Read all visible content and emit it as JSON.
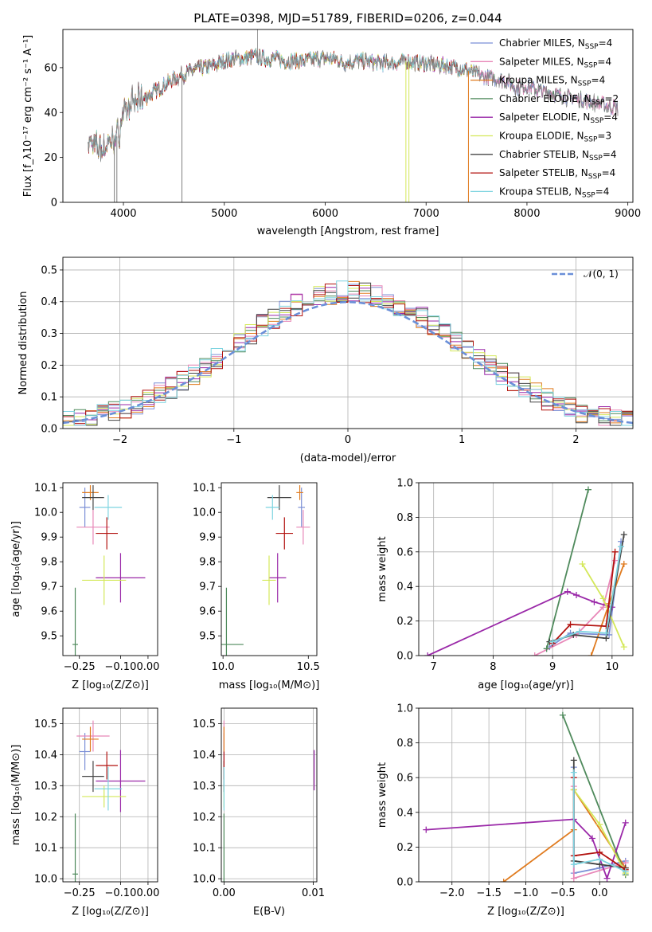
{
  "chart_data": [
    {
      "id": "spectrum",
      "type": "line",
      "title": "PLATE=0398, MJD=51789, FIBERID=0206, z=0.044",
      "xlabel": "wavelength [Angstrom, rest frame]",
      "ylabel": "Flux [f_λ10⁻¹⁷ erg cm⁻² s⁻¹ A⁻¹]",
      "xlim": [
        3400,
        9050
      ],
      "ylim": [
        0,
        77
      ],
      "xticks": [
        "4000",
        "5000",
        "6000",
        "7000",
        "8000",
        "9000"
      ],
      "yticks": [
        "0",
        "20",
        "40",
        "60"
      ],
      "grid": false,
      "legend_position": "top-right",
      "legend": [
        {
          "label": "Chabrier MILES, N",
          "sub": "SSP",
          "tail": "=4",
          "color": "#7b8fd6"
        },
        {
          "label": "Salpeter MILES, N",
          "sub": "SSP",
          "tail": "=4",
          "color": "#e887b8"
        },
        {
          "label": "Kroupa MILES, N",
          "sub": "SSP",
          "tail": "=4",
          "color": "#e07b1f"
        },
        {
          "label": "Chabrier ELODIE, N",
          "sub": "SSP",
          "tail": "=2",
          "color": "#4f8a5c"
        },
        {
          "label": "Salpeter ELODIE, N",
          "sub": "SSP",
          "tail": "=4",
          "color": "#9a28a8"
        },
        {
          "label": "Kroupa ELODIE, N",
          "sub": "SSP",
          "tail": "=3",
          "color": "#d4e85a"
        },
        {
          "label": "Chabrier STELIB, N",
          "sub": "SSP",
          "tail": "=4",
          "color": "#444444"
        },
        {
          "label": "Salpeter STELIB, N",
          "sub": "SSP",
          "tail": "=4",
          "color": "#b2120f"
        },
        {
          "label": "Kroupa STELIB, N",
          "sub": "SSP",
          "tail": "=4",
          "color": "#7ed4e0"
        }
      ],
      "data_color": "#808080",
      "continuum_x": [
        3650,
        3720,
        3800,
        3880,
        3950,
        4000,
        4100,
        4200,
        4300,
        4400,
        4500,
        4600,
        4700,
        4800,
        4900,
        5000,
        5100,
        5200,
        5300,
        5400,
        5500,
        5600,
        5700,
        5800,
        5900,
        6000,
        6100,
        6200,
        6300,
        6400,
        6500,
        6600,
        6700,
        6800,
        6900,
        7000,
        7100,
        7200,
        7300,
        7400,
        7500,
        7600,
        7700,
        7800,
        7900,
        8000,
        8100,
        8200,
        8300,
        8400,
        8500,
        8600,
        8700,
        8800,
        8900
      ],
      "continuum_y": [
        27,
        25,
        24,
        27,
        30,
        40,
        44,
        46,
        49,
        52,
        55,
        57,
        59,
        60,
        61,
        63,
        64,
        64,
        65,
        64,
        64,
        63,
        63,
        63,
        64,
        64,
        64,
        62,
        63,
        63,
        62,
        62,
        62,
        63,
        62,
        62,
        61,
        61,
        60,
        59,
        57,
        56,
        55,
        54,
        51,
        52,
        50,
        49,
        48,
        47,
        46,
        45,
        44,
        43,
        42
      ],
      "dropouts_x": [
        3910,
        3935,
        4580,
        6800,
        6830,
        7420
      ]
    },
    {
      "id": "residuals",
      "type": "step",
      "xlabel": "(data-model)/error",
      "ylabel": "Normed distribution",
      "xlim": [
        -2.5,
        2.5
      ],
      "ylim": [
        0,
        0.54
      ],
      "xticks": [
        "−2",
        "−1",
        "0",
        "1",
        "2"
      ],
      "yticks": [
        "0.0",
        "0.1",
        "0.2",
        "0.3",
        "0.4",
        "0.5"
      ],
      "grid": true,
      "legend_position": "top-right",
      "legend": [
        {
          "label": "𝒩(0, 1)",
          "color": "#6a8fd8",
          "dashed": true
        }
      ],
      "bin_width": 0.1
    },
    {
      "id": "age-vs-Z",
      "type": "errorbar",
      "xlabel": "Z [log₁₀(Z/Z⊙)]",
      "ylabel": "age  [log₁₀(age/yr)]",
      "xlim": [
        -0.31,
        0.035
      ],
      "ylim": [
        9.42,
        10.12
      ],
      "xticks": [
        "−0.25",
        "−0.10",
        "0.00"
      ],
      "xtick_values": [
        -0.25,
        -0.1,
        0.0
      ],
      "yticks": [
        9.5,
        9.6,
        9.7,
        9.8,
        9.9,
        10.0,
        10.1
      ],
      "grid": false,
      "points": [
        {
          "x": -0.23,
          "y": 10.02,
          "xe": 0.02,
          "ye": 0.08,
          "color": "#7b8fd6"
        },
        {
          "x": -0.2,
          "y": 9.94,
          "xe": 0.06,
          "ye": 0.07,
          "color": "#e887b8"
        },
        {
          "x": -0.21,
          "y": 10.08,
          "xe": 0.03,
          "ye": 0.03,
          "color": "#e07b1f"
        },
        {
          "x": -0.265,
          "y": 9.465,
          "xe": 0.01,
          "ye": 0.23,
          "color": "#4f8a5c"
        },
        {
          "x": -0.1,
          "y": 9.735,
          "xe": 0.09,
          "ye": 0.1,
          "color": "#9a28a8"
        },
        {
          "x": -0.16,
          "y": 9.725,
          "xe": 0.08,
          "ye": 0.1,
          "color": "#d4e85a"
        },
        {
          "x": -0.2,
          "y": 10.06,
          "xe": 0.04,
          "ye": 0.05,
          "color": "#444444"
        },
        {
          "x": -0.15,
          "y": 9.915,
          "xe": 0.04,
          "ye": 0.065,
          "color": "#b2120f"
        },
        {
          "x": -0.145,
          "y": 10.02,
          "xe": 0.05,
          "ye": 0.05,
          "color": "#7ed4e0"
        }
      ]
    },
    {
      "id": "age-vs-mass",
      "type": "errorbar",
      "xlabel": "mass [log₁₀(M/M⊙)]",
      "ylabel": "",
      "xlim": [
        9.99,
        10.55
      ],
      "ylim": [
        9.42,
        10.12
      ],
      "xticks": [
        "10.0",
        "10.5"
      ],
      "xtick_values": [
        10.0,
        10.5
      ],
      "yticks": [
        9.5,
        9.6,
        9.7,
        9.8,
        9.9,
        10.0,
        10.1
      ],
      "grid": false,
      "points": [
        {
          "x": 10.46,
          "y": 10.02,
          "xe": 0.02,
          "ye": 0.08,
          "color": "#7b8fd6"
        },
        {
          "x": 10.47,
          "y": 9.94,
          "xe": 0.04,
          "ye": 0.07,
          "color": "#e887b8"
        },
        {
          "x": 10.45,
          "y": 10.08,
          "xe": 0.02,
          "ye": 0.03,
          "color": "#e07b1f"
        },
        {
          "x": 10.02,
          "y": 9.465,
          "xe": 0.1,
          "ye": 0.23,
          "color": "#4f8a5c"
        },
        {
          "x": 10.32,
          "y": 9.735,
          "xe": 0.05,
          "ye": 0.1,
          "color": "#9a28a8"
        },
        {
          "x": 10.27,
          "y": 9.725,
          "xe": 0.04,
          "ye": 0.1,
          "color": "#d4e85a"
        },
        {
          "x": 10.33,
          "y": 10.06,
          "xe": 0.07,
          "ye": 0.05,
          "color": "#444444"
        },
        {
          "x": 10.36,
          "y": 9.915,
          "xe": 0.05,
          "ye": 0.065,
          "color": "#b2120f"
        },
        {
          "x": 10.29,
          "y": 10.02,
          "xe": 0.04,
          "ye": 0.05,
          "color": "#7ed4e0"
        }
      ]
    },
    {
      "id": "weight-vs-age",
      "type": "line",
      "xlabel": "age  [log₁₀(age/yr)]",
      "ylabel": "mass weight",
      "xlim": [
        6.75,
        10.35
      ],
      "ylim": [
        0,
        1
      ],
      "xticks": [
        "7",
        "8",
        "9",
        "10"
      ],
      "xtick_values": [
        7,
        8,
        9,
        10
      ],
      "yticks": [
        "0.0",
        "0.2",
        "0.4",
        "0.6",
        "0.8",
        "1.0"
      ],
      "grid": true,
      "series": [
        {
          "color": "#7b8fd6",
          "x": [
            8.95,
            9.3,
            9.95,
            10.15
          ],
          "y": [
            0.05,
            0.13,
            0.12,
            0.66
          ]
        },
        {
          "color": "#e887b8",
          "x": [
            8.7,
            9.4,
            9.85,
            10.05
          ],
          "y": [
            0.0,
            0.12,
            0.28,
            0.55
          ]
        },
        {
          "color": "#e07b1f",
          "x": [
            9.65,
            9.95,
            10.2
          ],
          "y": [
            0.0,
            0.3,
            0.53
          ]
        },
        {
          "color": "#4f8a5c",
          "x": [
            8.9,
            9.6
          ],
          "y": [
            0.04,
            0.96
          ]
        },
        {
          "color": "#9a28a8",
          "x": [
            6.9,
            9.25,
            9.4,
            9.7,
            10.0
          ],
          "y": [
            0.0,
            0.37,
            0.35,
            0.31,
            0.28
          ]
        },
        {
          "color": "#d4e85a",
          "x": [
            9.5,
            9.85,
            10.2
          ],
          "y": [
            0.53,
            0.33,
            0.05
          ]
        },
        {
          "color": "#444444",
          "x": [
            8.95,
            9.35,
            9.9,
            10.2
          ],
          "y": [
            0.08,
            0.12,
            0.1,
            0.7
          ]
        },
        {
          "color": "#b2120f",
          "x": [
            9.0,
            9.3,
            9.9,
            10.05
          ],
          "y": [
            0.07,
            0.18,
            0.17,
            0.6
          ]
        },
        {
          "color": "#7ed4e0",
          "x": [
            9.0,
            9.45,
            9.9,
            10.15
          ],
          "y": [
            0.08,
            0.14,
            0.13,
            0.63
          ]
        }
      ]
    },
    {
      "id": "mass-vs-Z",
      "type": "errorbar",
      "xlabel": "Z [log₁₀(Z/Z⊙)]",
      "ylabel": "mass [log₁₀(M/M⊙)]",
      "xlim": [
        -0.31,
        0.035
      ],
      "ylim": [
        9.99,
        10.55
      ],
      "xticks": [
        "−0.25",
        "−0.10",
        "0.00"
      ],
      "xtick_values": [
        -0.25,
        -0.1,
        0.0
      ],
      "yticks": [
        10.0,
        10.1,
        10.2,
        10.3,
        10.4,
        10.5
      ],
      "grid": true,
      "points": [
        {
          "x": -0.23,
          "y": 10.41,
          "xe": 0.02,
          "ye": 0.06,
          "color": "#7b8fd6"
        },
        {
          "x": -0.2,
          "y": 10.46,
          "xe": 0.06,
          "ye": 0.05,
          "color": "#e887b8"
        },
        {
          "x": -0.21,
          "y": 10.45,
          "xe": 0.03,
          "ye": 0.04,
          "color": "#e07b1f"
        },
        {
          "x": -0.265,
          "y": 10.015,
          "xe": 0.01,
          "ye": 0.195,
          "color": "#4f8a5c"
        },
        {
          "x": -0.1,
          "y": 10.315,
          "xe": 0.09,
          "ye": 0.1,
          "color": "#9a28a8"
        },
        {
          "x": -0.16,
          "y": 10.265,
          "xe": 0.08,
          "ye": 0.035,
          "color": "#d4e85a"
        },
        {
          "x": -0.2,
          "y": 10.33,
          "xe": 0.04,
          "ye": 0.05,
          "color": "#444444"
        },
        {
          "x": -0.15,
          "y": 10.365,
          "xe": 0.04,
          "ye": 0.045,
          "color": "#b2120f"
        },
        {
          "x": -0.145,
          "y": 10.29,
          "xe": 0.05,
          "ye": 0.07,
          "color": "#7ed4e0"
        }
      ]
    },
    {
      "id": "mass-vs-ebv",
      "type": "errorbar",
      "xlabel": "E(B-V)",
      "ylabel": "",
      "xlim": [
        -0.0003,
        0.0104
      ],
      "ylim": [
        9.99,
        10.55
      ],
      "xticks": [
        "0.00",
        "0.01"
      ],
      "xtick_values": [
        0.0,
        0.01
      ],
      "yticks": [
        10.0,
        10.1,
        10.2,
        10.3,
        10.4,
        10.5
      ],
      "grid": true,
      "points": [
        {
          "x": 0.0,
          "y": 10.41,
          "xe": 0.0,
          "ye": 0.06,
          "color": "#7b8fd6"
        },
        {
          "x": 0.0,
          "y": 10.46,
          "xe": 0.0,
          "ye": 0.05,
          "color": "#e887b8"
        },
        {
          "x": 0.0,
          "y": 10.45,
          "xe": 0.0,
          "ye": 0.04,
          "color": "#e07b1f"
        },
        {
          "x": 0.0,
          "y": 10.015,
          "xe": 0.0,
          "ye": 0.195,
          "color": "#4f8a5c"
        },
        {
          "x": 0.0101,
          "y": 10.35,
          "xe": 0.0,
          "ye": 0.065,
          "color": "#9a28a8"
        },
        {
          "x": 0.0,
          "y": 10.265,
          "xe": 0.0,
          "ye": 0.035,
          "color": "#d4e85a"
        },
        {
          "x": 0.0,
          "y": 10.33,
          "xe": 0.0,
          "ye": 0.05,
          "color": "#444444"
        },
        {
          "x": 0.0,
          "y": 10.365,
          "xe": 0.0,
          "ye": 0.045,
          "color": "#b2120f"
        },
        {
          "x": 0.0,
          "y": 10.29,
          "xe": 0.0,
          "ye": 0.07,
          "color": "#7ed4e0"
        }
      ]
    },
    {
      "id": "weight-vs-Z",
      "type": "line",
      "xlabel": "Z [log₁₀(Z/Z⊙)]",
      "ylabel": "mass weight",
      "xlim": [
        -2.45,
        0.45
      ],
      "ylim": [
        0,
        1
      ],
      "xticks": [
        "−2.0",
        "−1.5",
        "−1.0",
        "−0.5",
        "0.0"
      ],
      "xtick_values": [
        -2.0,
        -1.5,
        -1.0,
        -0.5,
        0.0
      ],
      "yticks": [
        "0.0",
        "0.2",
        "0.4",
        "0.6",
        "0.8",
        "1.0"
      ],
      "grid": true,
      "series": [
        {
          "color": "#7b8fd6",
          "x": [
            -0.35,
            -0.35,
            0.0,
            0.35
          ],
          "y": [
            0.66,
            0.05,
            0.08,
            0.12
          ]
        },
        {
          "color": "#e887b8",
          "x": [
            -0.35,
            -0.35,
            0.35
          ],
          "y": [
            0.55,
            0.02,
            0.11
          ]
        },
        {
          "color": "#e07b1f",
          "x": [
            -1.3,
            -0.35,
            -0.35,
            0.35
          ],
          "y": [
            0.0,
            0.3,
            0.53,
            0.08
          ]
        },
        {
          "color": "#4f8a5c",
          "x": [
            -0.5,
            0.35
          ],
          "y": [
            0.96,
            0.04
          ]
        },
        {
          "color": "#9a28a8",
          "x": [
            -2.35,
            -0.35,
            -0.1,
            0.1,
            0.35
          ],
          "y": [
            0.3,
            0.36,
            0.25,
            0.02,
            0.34
          ]
        },
        {
          "color": "#d4e85a",
          "x": [
            -0.35,
            0.0,
            0.35
          ],
          "y": [
            0.53,
            0.33,
            0.05
          ]
        },
        {
          "color": "#444444",
          "x": [
            -0.35,
            -0.35,
            0.0,
            0.35
          ],
          "y": [
            0.7,
            0.12,
            0.1,
            0.08
          ]
        },
        {
          "color": "#b2120f",
          "x": [
            -0.35,
            -0.35,
            0.0,
            0.35
          ],
          "y": [
            0.6,
            0.15,
            0.17,
            0.07
          ]
        },
        {
          "color": "#7ed4e0",
          "x": [
            -0.35,
            -0.35,
            0.0,
            0.35
          ],
          "y": [
            0.63,
            0.1,
            0.13,
            0.06
          ]
        }
      ]
    }
  ]
}
